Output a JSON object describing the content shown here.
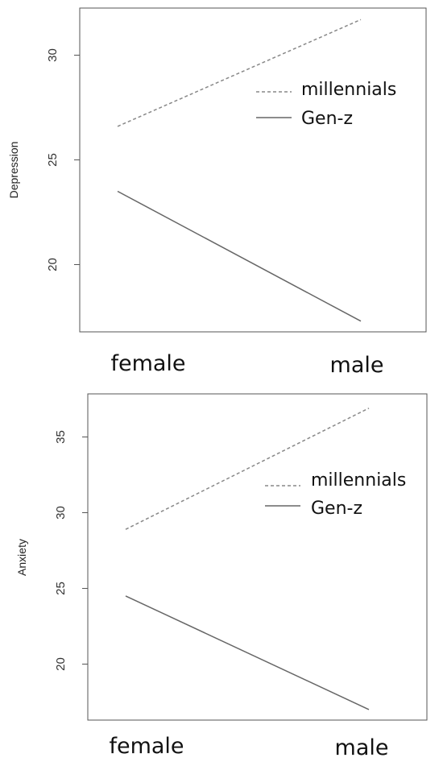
{
  "chart_data": [
    {
      "type": "line",
      "ylabel": "Depression",
      "categories": [
        "female",
        "male"
      ],
      "ylim": [
        17.3,
        32.2
      ],
      "yticks": [
        20,
        25,
        30
      ],
      "grid": false,
      "legend_position": "top-right",
      "series": [
        {
          "name": "millennials",
          "values": [
            26.6,
            31.7
          ],
          "style": "dashed",
          "color": "#888888"
        },
        {
          "name": "Gen-z",
          "values": [
            23.5,
            17.3
          ],
          "style": "solid",
          "color": "#666666"
        }
      ]
    },
    {
      "type": "line",
      "ylabel": "Anxiety",
      "categories": [
        "female",
        "male"
      ],
      "ylim": [
        17.0,
        36.9
      ],
      "yticks": [
        20,
        25,
        30,
        35
      ],
      "grid": false,
      "legend_position": "top-right",
      "series": [
        {
          "name": "millennials",
          "values": [
            28.9,
            36.9
          ],
          "style": "dashed",
          "color": "#888888"
        },
        {
          "name": "Gen-z",
          "values": [
            24.5,
            17.0
          ],
          "style": "solid",
          "color": "#666666"
        }
      ]
    }
  ]
}
